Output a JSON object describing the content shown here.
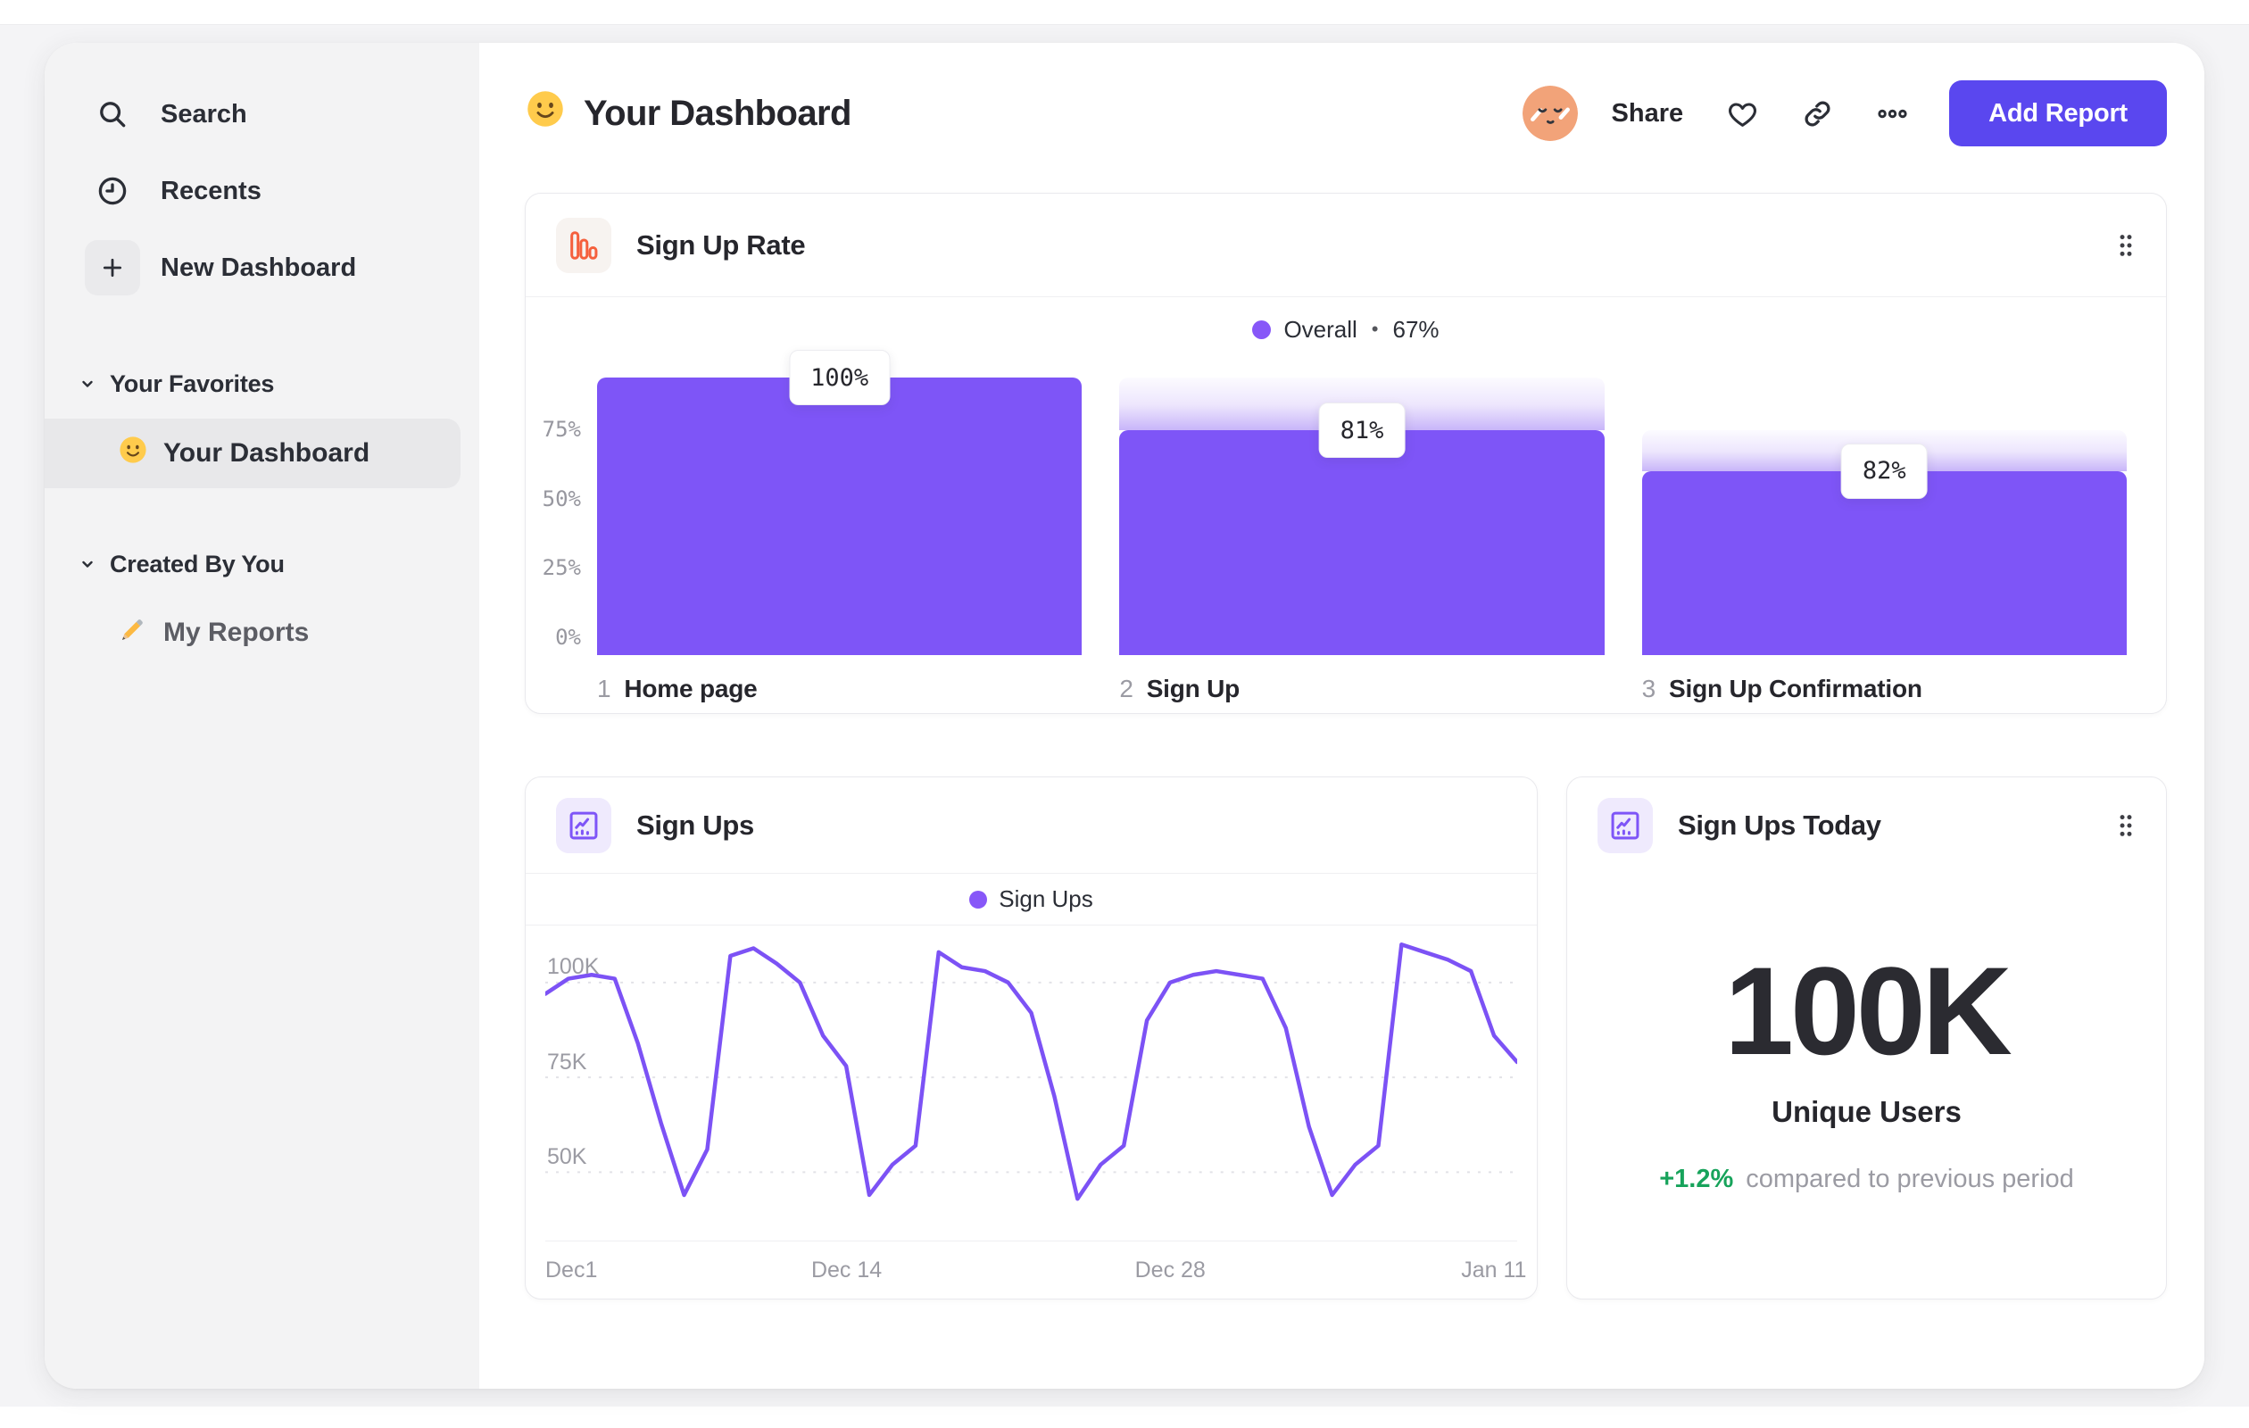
{
  "icons": {
    "title": "smiley",
    "avatar": "avatar-face",
    "heart": "heart",
    "link": "link",
    "more": "ellipsis",
    "drag": "drag-handle",
    "funnel_card": "funnel-bars",
    "line_card": "line-chart",
    "big_card": "line-chart",
    "section_chevron": "chevron-down"
  },
  "header": {
    "title": "Your Dashboard",
    "share": "Share",
    "add_report": "Add Report",
    "accent_color": "#5A47EF"
  },
  "sidebar": {
    "nav": [
      {
        "icon": "search",
        "label": "Search"
      },
      {
        "icon": "clock",
        "label": "Recents"
      },
      {
        "icon": "plus",
        "label": "New Dashboard"
      }
    ],
    "sections": [
      {
        "label": "Your Favorites",
        "items": [
          {
            "icon": "smiley",
            "label": "Your Dashboard",
            "active": true
          }
        ]
      },
      {
        "label": "Created By You",
        "items": [
          {
            "icon": "pencil",
            "label": "My Reports",
            "active": false
          }
        ]
      }
    ]
  },
  "chart_data": [
    {
      "id": "sign-up-rate",
      "type": "bar",
      "subtype": "funnel",
      "title": "Sign Up Rate",
      "legend": {
        "series": "Overall",
        "separator": "•",
        "value": "67%",
        "position": "top-center"
      },
      "ylim": [
        0,
        100
      ],
      "grid": false,
      "y_axis": [
        {
          "label": "75%",
          "value": 75
        },
        {
          "label": "50%",
          "value": 50
        },
        {
          "label": "25%",
          "value": 25
        },
        {
          "label": "0%",
          "value": 0
        }
      ],
      "steps": [
        {
          "index": "1",
          "label": "Home page",
          "chip": "100%",
          "step_conversion_pct": 100,
          "overall_pct": 100,
          "from_pct": 100
        },
        {
          "index": "2",
          "label": "Sign Up",
          "chip": "81%",
          "step_conversion_pct": 81,
          "overall_pct": 81,
          "from_pct": 100
        },
        {
          "index": "3",
          "label": "Sign Up Confirmation",
          "chip": "82%",
          "step_conversion_pct": 82,
          "overall_pct": 66.4,
          "from_pct": 81
        }
      ],
      "colors": {
        "bar": "#7E55F7",
        "legend_dot": "#8757F8"
      }
    },
    {
      "id": "sign-ups",
      "type": "line",
      "title": "Sign Ups",
      "legend": {
        "series": "Sign Ups",
        "position": "top-center"
      },
      "unit": "K",
      "ylim": [
        32,
        115
      ],
      "grid": "dashed-horizontal",
      "y_axis": [
        {
          "label": "100K",
          "value": 100
        },
        {
          "label": "75K",
          "value": 75
        },
        {
          "label": "50K",
          "value": 50
        }
      ],
      "x_ticks": [
        {
          "label": "Dec1",
          "pos_pct": 0
        },
        {
          "label": "Dec 14",
          "pos_pct": 31
        },
        {
          "label": "Dec 28",
          "pos_pct": 64.3
        },
        {
          "label": "Jan 11",
          "pos_pct": 97.6
        }
      ],
      "values_k": [
        97,
        101,
        102,
        101,
        84,
        63,
        44,
        56,
        107,
        109,
        105,
        100,
        86,
        78,
        44,
        52,
        57,
        108,
        104,
        103,
        100,
        92,
        70,
        43,
        52,
        57,
        90,
        100,
        102,
        103,
        102,
        101,
        88,
        62,
        44,
        52,
        57,
        110,
        108,
        106,
        103,
        86,
        79
      ],
      "colors": {
        "line": "#7C52F5",
        "legend_dot": "#8757F8"
      }
    },
    {
      "id": "sign-ups-today",
      "type": "big_number",
      "title": "Sign Ups Today",
      "value": "100K",
      "label": "Unique Users",
      "delta": "+1.2%",
      "delta_note": "compared to previous period",
      "colors": {
        "delta": "#17A35B"
      }
    }
  ]
}
